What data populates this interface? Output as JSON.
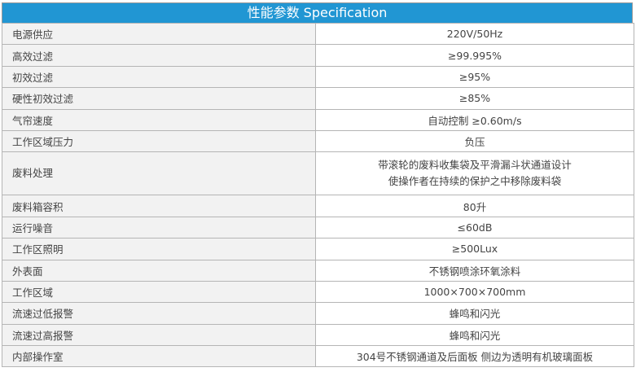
{
  "header": {
    "title": "性能参数 Specification",
    "color": "#2196d3"
  },
  "rows": [
    {
      "label": "电源供应",
      "value": "220V/50Hz"
    },
    {
      "label": "高效过滤",
      "value": "≥99.995%"
    },
    {
      "label": "初效过滤",
      "value": "≥95%"
    },
    {
      "label": "硬性初效过滤",
      "value": "≥85%"
    },
    {
      "label": "气帘速度",
      "value": "自动控制 ≥0.60m/s"
    },
    {
      "label": "工作区域压力",
      "value": "负压"
    },
    {
      "label": "废料处理",
      "value": "带滚轮的废料收集袋及平滑漏斗状通道设计",
      "value2": "使操作者在持续的保护之中移除废料袋"
    },
    {
      "label": "废料箱容积",
      "value": "80升"
    },
    {
      "label": "运行噪音",
      "value": "≤60dB"
    },
    {
      "label": "工作区照明",
      "value": "≥500Lux"
    },
    {
      "label": "外表面",
      "value": "不锈钢喷涂环氧涂料"
    },
    {
      "label": "工作区域",
      "value": "1000×700×700mm"
    },
    {
      "label": "流速过低报警",
      "value": "蜂鸣和闪光"
    },
    {
      "label": "流速过高报警",
      "value": "蜂鸣和闪光"
    },
    {
      "label": "内部操作室",
      "value": "304号不锈钢通道及后面板 侧边为透明有机玻璃面板"
    }
  ]
}
